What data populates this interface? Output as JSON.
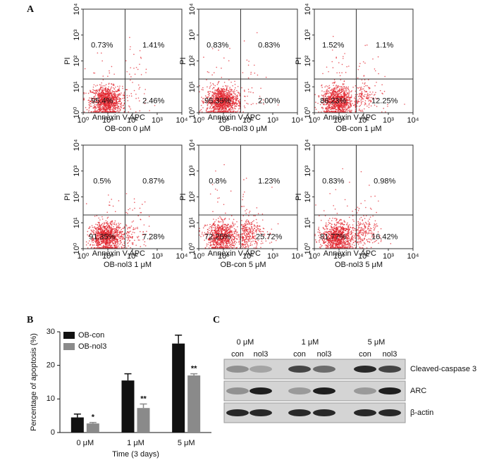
{
  "panels": [
    "A",
    "B",
    "C"
  ],
  "chart_data": [
    {
      "type": "flow",
      "title": "OB-con 0 μM",
      "xlabel": "Annexin V APC",
      "ylabel": "PI",
      "log_scale": true,
      "xlim": [
        1,
        10000
      ],
      "ylim": [
        1,
        10000
      ],
      "xticks": [
        {
          "value": 1,
          "label": "10⁰"
        },
        {
          "value": 10,
          "label": "10¹"
        },
        {
          "value": 100,
          "label": "10²"
        },
        {
          "value": 1000,
          "label": "10³"
        },
        {
          "value": 10000,
          "label": "10⁴"
        }
      ],
      "yticks": [
        {
          "value": 1,
          "label": "10⁰"
        },
        {
          "value": 10,
          "label": "10¹"
        },
        {
          "value": 100,
          "label": "10²"
        },
        {
          "value": 1000,
          "label": "10³"
        },
        {
          "value": 10000,
          "label": "10⁴"
        }
      ],
      "gates": [
        50,
        20
      ],
      "color": "#e2232c",
      "values": [
        0.73,
        1.41,
        95.4,
        2.46
      ],
      "value_labels": [
        "0.73%",
        "1.41%",
        "95.4%",
        "2.46%"
      ]
    },
    {
      "type": "flow",
      "title": "OB-nol3 0 μM",
      "xlabel": "Annexin V APC",
      "ylabel": "PI",
      "log_scale": true,
      "xlim": [
        1,
        10000
      ],
      "ylim": [
        1,
        10000
      ],
      "xticks": [
        {
          "value": 1,
          "label": "10⁰"
        },
        {
          "value": 10,
          "label": "10¹"
        },
        {
          "value": 100,
          "label": "10²"
        },
        {
          "value": 1000,
          "label": "10³"
        },
        {
          "value": 10000,
          "label": "10⁴"
        }
      ],
      "yticks": [
        {
          "value": 1,
          "label": "10⁰"
        },
        {
          "value": 10,
          "label": "10¹"
        },
        {
          "value": 100,
          "label": "10²"
        },
        {
          "value": 1000,
          "label": "10³"
        },
        {
          "value": 10000,
          "label": "10⁴"
        }
      ],
      "gates": [
        50,
        20
      ],
      "color": "#e2232c",
      "values": [
        0.83,
        0.83,
        95.35,
        2.0
      ],
      "value_labels": [
        "0.83%",
        "0.83%",
        "95.35%",
        "2.00%"
      ]
    },
    {
      "type": "flow",
      "title": "OB-con 1 μM",
      "xlabel": "Annexin V APC",
      "ylabel": "PI",
      "log_scale": true,
      "xlim": [
        1,
        10000
      ],
      "ylim": [
        1,
        10000
      ],
      "xticks": [
        {
          "value": 1,
          "label": "10⁰"
        },
        {
          "value": 10,
          "label": "10¹"
        },
        {
          "value": 100,
          "label": "10²"
        },
        {
          "value": 1000,
          "label": "10³"
        },
        {
          "value": 10000,
          "label": "10⁴"
        }
      ],
      "yticks": [
        {
          "value": 1,
          "label": "10⁰"
        },
        {
          "value": 10,
          "label": "10¹"
        },
        {
          "value": 100,
          "label": "10²"
        },
        {
          "value": 1000,
          "label": "10³"
        },
        {
          "value": 10000,
          "label": "10⁴"
        }
      ],
      "gates": [
        50,
        20
      ],
      "color": "#e2232c",
      "values": [
        1.52,
        1.1,
        86.23,
        12.25
      ],
      "value_labels": [
        "1.52%",
        "1.1%",
        "86.23%",
        "12.25%"
      ]
    },
    {
      "type": "flow",
      "title": "OB-nol3 1 μM",
      "xlabel": "Annexin V APC",
      "ylabel": "PI",
      "log_scale": true,
      "xlim": [
        1,
        10000
      ],
      "ylim": [
        1,
        10000
      ],
      "xticks": [
        {
          "value": 1,
          "label": "10⁰"
        },
        {
          "value": 10,
          "label": "10¹"
        },
        {
          "value": 100,
          "label": "10²"
        },
        {
          "value": 1000,
          "label": "10³"
        },
        {
          "value": 10000,
          "label": "10⁴"
        }
      ],
      "yticks": [
        {
          "value": 1,
          "label": "10⁰"
        },
        {
          "value": 10,
          "label": "10¹"
        },
        {
          "value": 100,
          "label": "10²"
        },
        {
          "value": 1000,
          "label": "10³"
        },
        {
          "value": 10000,
          "label": "10⁴"
        }
      ],
      "gates": [
        50,
        20
      ],
      "color": "#e2232c",
      "values": [
        0.5,
        0.87,
        91.35,
        7.28
      ],
      "value_labels": [
        "0.5%",
        "0.87%",
        "91.35%",
        "7.28%"
      ]
    },
    {
      "type": "flow",
      "title": "OB-con 5 μM",
      "xlabel": "Annexin V APC",
      "ylabel": "PI",
      "log_scale": true,
      "xlim": [
        1,
        10000
      ],
      "ylim": [
        1,
        10000
      ],
      "xticks": [
        {
          "value": 1,
          "label": "10⁰"
        },
        {
          "value": 10,
          "label": "10¹"
        },
        {
          "value": 100,
          "label": "10²"
        },
        {
          "value": 1000,
          "label": "10³"
        },
        {
          "value": 10000,
          "label": "10⁴"
        }
      ],
      "yticks": [
        {
          "value": 1,
          "label": "10⁰"
        },
        {
          "value": 10,
          "label": "10¹"
        },
        {
          "value": 100,
          "label": "10²"
        },
        {
          "value": 1000,
          "label": "10³"
        },
        {
          "value": 10000,
          "label": "10⁴"
        }
      ],
      "gates": [
        50,
        20
      ],
      "color": "#e2232c",
      "values": [
        0.8,
        1.23,
        72.25,
        25.72
      ],
      "value_labels": [
        "0.8%",
        "1.23%",
        "72.25%",
        "25.72%"
      ]
    },
    {
      "type": "flow",
      "title": "OB-nol3 5 μM",
      "xlabel": "Annexin V APC",
      "ylabel": "PI",
      "log_scale": true,
      "xlim": [
        1,
        10000
      ],
      "ylim": [
        1,
        10000
      ],
      "xticks": [
        {
          "value": 1,
          "label": "10⁰"
        },
        {
          "value": 10,
          "label": "10¹"
        },
        {
          "value": 100,
          "label": "10²"
        },
        {
          "value": 1000,
          "label": "10³"
        },
        {
          "value": 10000,
          "label": "10⁴"
        }
      ],
      "yticks": [
        {
          "value": 1,
          "label": "10⁰"
        },
        {
          "value": 10,
          "label": "10¹"
        },
        {
          "value": 100,
          "label": "10²"
        },
        {
          "value": 1000,
          "label": "10³"
        },
        {
          "value": 10000,
          "label": "10⁴"
        }
      ],
      "gates": [
        50,
        20
      ],
      "color": "#e2232c",
      "values": [
        0.83,
        0.98,
        81.77,
        16.42
      ],
      "value_labels": [
        "0.83%",
        "0.98%",
        "81.77%",
        "16.42%"
      ]
    },
    {
      "type": "bar",
      "xlabel": "Time (3 days)",
      "ylabel": "Percentage of apoptosis (%)",
      "categories": [
        "0 μM",
        "1 μM",
        "5 μM"
      ],
      "ylim": [
        0,
        30
      ],
      "yticks": [
        0,
        10,
        20,
        30
      ],
      "legend": "upper left",
      "series": [
        {
          "name": "OB-con",
          "color": "#111111",
          "values": [
            4.5,
            15.5,
            26.5
          ],
          "errors": [
            1,
            2,
            2.5
          ]
        },
        {
          "name": "OB-nol3",
          "color": "#8a8a8a",
          "values": [
            2.7,
            7.3,
            17
          ],
          "errors": [
            0.3,
            1.2,
            0.5
          ],
          "significance": [
            "*",
            "**",
            "**"
          ]
        }
      ]
    }
  ],
  "blot": {
    "groups": [
      "0 μM",
      "1 μM",
      "5 μM"
    ],
    "lanes": [
      "con",
      "nol3",
      "con",
      "nol3",
      "con",
      "nol3"
    ],
    "rows": [
      {
        "label": "Cleaved-caspase 3",
        "bands": [
          0.35,
          0.25,
          0.75,
          0.55,
          0.9,
          0.75
        ]
      },
      {
        "label": "ARC",
        "bands": [
          0.35,
          0.95,
          0.3,
          0.95,
          0.3,
          0.95
        ]
      },
      {
        "label": "β-actin",
        "bands": [
          0.9,
          0.9,
          0.9,
          0.9,
          0.9,
          0.9
        ]
      }
    ]
  }
}
